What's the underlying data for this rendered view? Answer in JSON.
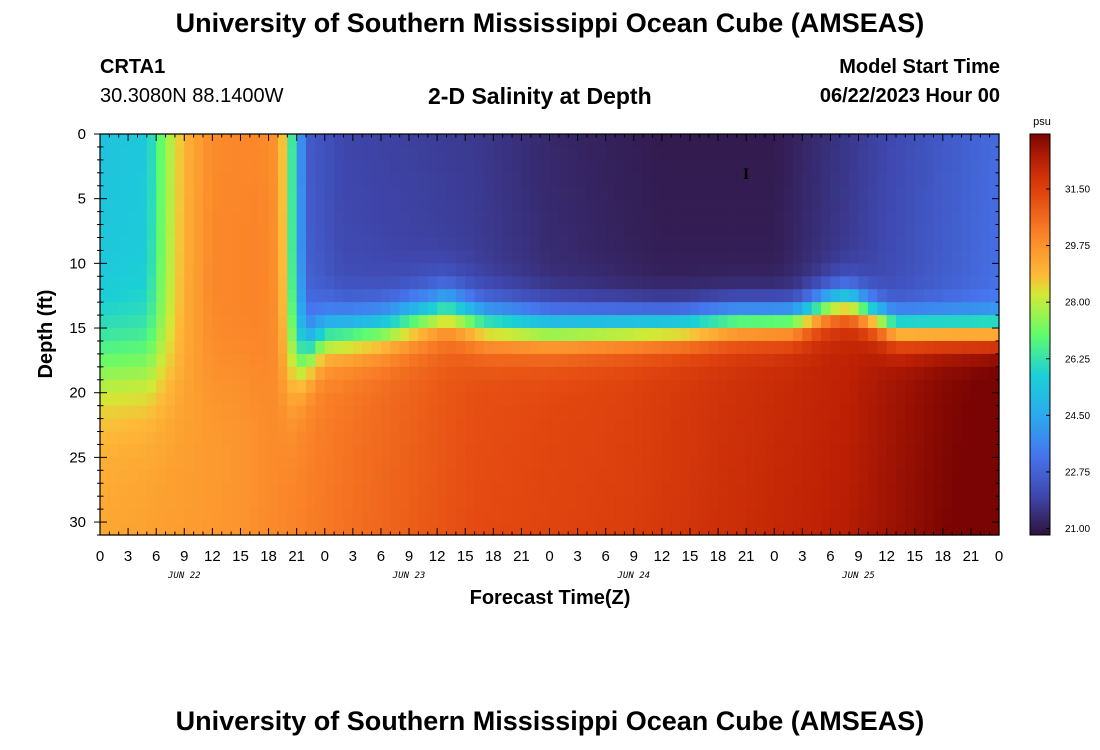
{
  "header": {
    "title": "University of Southern Mississippi Ocean Cube (AMSEAS)",
    "station_id": "CRTA1",
    "station_location": "30.3080N  88.1400W",
    "chart_title": "2-D Salinity at Depth",
    "model_start_label": "Model Start Time",
    "model_start_value": "06/22/2023 Hour 00"
  },
  "footer": {
    "title": "University of Southern Mississippi Ocean Cube (AMSEAS)"
  },
  "chart_data": {
    "type": "heatmap",
    "title": "2-D Salinity at Depth",
    "xlabel": "Forecast Time(Z)",
    "ylabel": "Depth (ft)",
    "x_ticks": [
      "0",
      "3",
      "6",
      "9",
      "12",
      "15",
      "18",
      "21",
      "0",
      "3",
      "6",
      "9",
      "12",
      "15",
      "18",
      "21",
      "0",
      "3",
      "6",
      "9",
      "12",
      "15",
      "18",
      "21",
      "0",
      "3",
      "6",
      "9",
      "12",
      "15",
      "18",
      "21",
      "0"
    ],
    "day_labels": [
      "JUN 22",
      "JUN 23",
      "JUN 24",
      "JUN 25"
    ],
    "xlim_hours": [
      0,
      96
    ],
    "y_ticks": [
      0,
      5,
      10,
      15,
      20,
      25,
      30
    ],
    "ylim": [
      0,
      31
    ],
    "colorbar": {
      "unit": "psu",
      "ticks": [
        21.0,
        22.75,
        24.5,
        26.25,
        28.0,
        29.75,
        31.5
      ],
      "tick_labels": [
        "21.00",
        "22.75",
        "24.50",
        "26.25",
        "28.00",
        "29.75",
        "31.50"
      ],
      "range": [
        20.8,
        33.2
      ]
    },
    "marker": {
      "hour": 69,
      "depth_ft": 3,
      "label": "I"
    },
    "surface_salinity_psu": [
      [
        0,
        25.3
      ],
      [
        5,
        25.5
      ],
      [
        7,
        27.5
      ],
      [
        9,
        29.0
      ],
      [
        12,
        29.9
      ],
      [
        17,
        30.0
      ],
      [
        19,
        29.7
      ],
      [
        20,
        27.8
      ],
      [
        21,
        25.0
      ],
      [
        22,
        22.6
      ],
      [
        26,
        22.0
      ],
      [
        40,
        21.7
      ],
      [
        48,
        21.3
      ],
      [
        60,
        21.0
      ],
      [
        72,
        21.0
      ],
      [
        78,
        21.5
      ],
      [
        84,
        22.0
      ],
      [
        96,
        23.0
      ]
    ],
    "bottom_salinity_psu": [
      [
        0,
        29.0
      ],
      [
        14,
        29.4
      ],
      [
        28,
        30.3
      ],
      [
        40,
        31.0
      ],
      [
        56,
        31.3
      ],
      [
        72,
        31.9
      ],
      [
        80,
        32.2
      ],
      [
        90,
        32.9
      ],
      [
        96,
        33.2
      ]
    ],
    "halocline_depth_ft": [
      [
        0,
        18.0
      ],
      [
        20,
        18.0
      ],
      [
        22,
        17.0
      ],
      [
        24,
        15.5
      ],
      [
        30,
        15.0
      ],
      [
        37,
        13.5
      ],
      [
        41,
        14.6
      ],
      [
        48,
        15.0
      ],
      [
        62,
        14.8
      ],
      [
        68,
        14.4
      ],
      [
        74,
        14.4
      ],
      [
        78,
        13.2
      ],
      [
        80,
        13.0
      ],
      [
        82,
        13.8
      ],
      [
        85,
        15.0
      ],
      [
        96,
        15.2
      ]
    ],
    "halocline_width_ft": [
      [
        0,
        9.0
      ],
      [
        20,
        9.0
      ],
      [
        22,
        5.5
      ],
      [
        24,
        4.5
      ],
      [
        60,
        3.4
      ],
      [
        96,
        3.0
      ]
    ]
  }
}
